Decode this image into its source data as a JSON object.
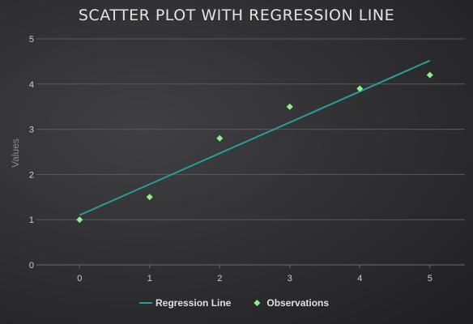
{
  "colors": {
    "regression": "#2a9d9a",
    "observations": "#90ee90",
    "grid": "#5a5a5a",
    "text": "#e0e0e0"
  },
  "chart_data": {
    "type": "scatter",
    "title": "SCATTER PLOT WITH REGRESSION LINE",
    "xlabel": "",
    "ylabel": "Values",
    "xlim": [
      -0.5,
      5.5
    ],
    "ylim": [
      0,
      5
    ],
    "x_ticks": [
      0,
      1,
      2,
      3,
      4,
      5
    ],
    "y_ticks": [
      0,
      1,
      2,
      3,
      4,
      5
    ],
    "grid": "horizontal",
    "legend_position": "bottom-center",
    "series": [
      {
        "name": "Regression Line",
        "kind": "line",
        "x": [
          0,
          5
        ],
        "y": [
          1.1,
          4.52
        ]
      },
      {
        "name": "Observations",
        "kind": "scatter",
        "marker": "diamond",
        "x": [
          0,
          1,
          2,
          3,
          4,
          5
        ],
        "y": [
          1.0,
          1.5,
          2.8,
          3.5,
          3.9,
          4.2
        ]
      }
    ]
  }
}
